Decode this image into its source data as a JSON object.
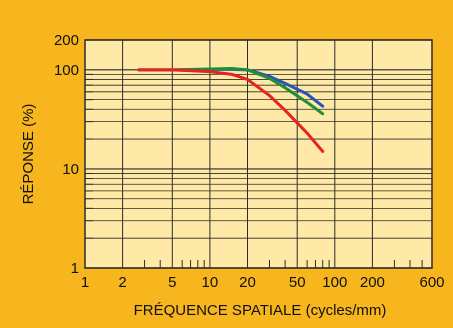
{
  "chart_data": {
    "type": "line",
    "title": "",
    "xlabel": "FRÉQUENCE SPATIALE (cycles/mm)",
    "ylabel": "RÉPONSE (%)",
    "x_scale": "log",
    "y_scale": "log",
    "xlim": [
      1,
      600
    ],
    "ylim": [
      1,
      200
    ],
    "x_ticks": [
      "1",
      "2",
      "5",
      "10",
      "20",
      "50",
      "100",
      "200",
      "600"
    ],
    "x_tick_values": [
      1,
      2,
      5,
      10,
      20,
      50,
      100,
      200,
      600
    ],
    "y_ticks": [
      "1",
      "10",
      "100",
      "200"
    ],
    "y_tick_values": [
      1,
      10,
      100,
      200
    ],
    "grid": true,
    "legend": "none",
    "colors": {
      "background": "#F7B61E",
      "plot_background": "#FFE9A6",
      "grid": "#2B2B2B",
      "text": "#111111"
    },
    "series": [
      {
        "color": "#2A55B8",
        "x": [
          2.7,
          5,
          10,
          15,
          20,
          30,
          40,
          60,
          80
        ],
        "y": [
          100,
          100,
          101,
          101,
          100,
          86,
          73,
          57,
          43
        ]
      },
      {
        "color": "#1F8E3A",
        "x": [
          2.7,
          5,
          10,
          15,
          20,
          30,
          40,
          60,
          80
        ],
        "y": [
          100,
          100,
          102,
          103,
          100,
          82,
          66,
          47,
          36
        ]
      },
      {
        "color": "#E62222",
        "x": [
          2.7,
          5,
          10,
          15,
          20,
          30,
          40,
          60,
          80
        ],
        "y": [
          100,
          100,
          96,
          90,
          80,
          55,
          39,
          23,
          15
        ]
      }
    ]
  }
}
